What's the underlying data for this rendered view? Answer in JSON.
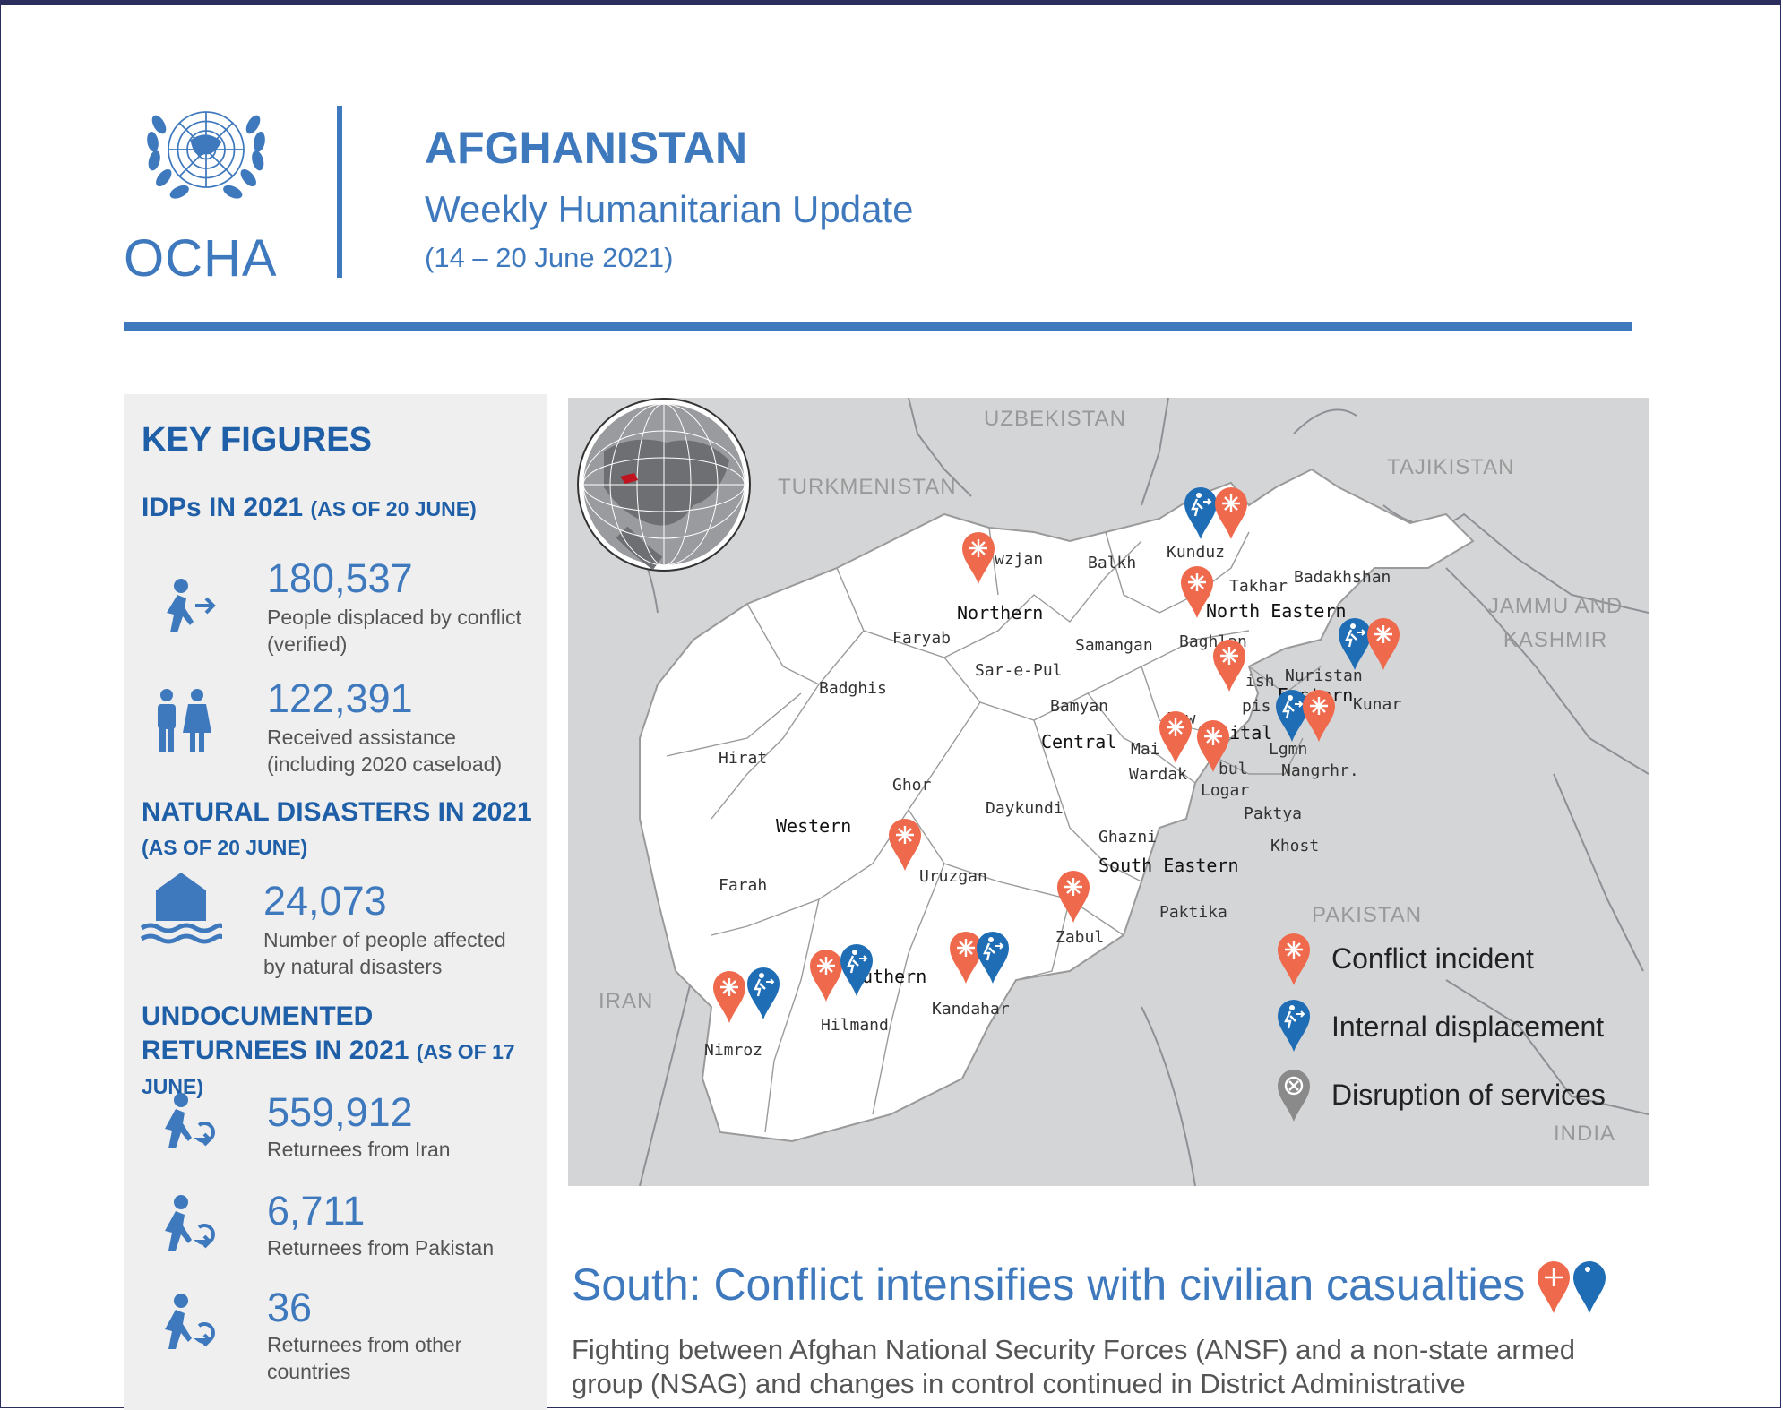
{
  "header": {
    "org": "OCHA",
    "title": "AFGHANISTAN",
    "subtitle": "Weekly Humanitarian Update",
    "date_range": "(14 – 20 June 2021)"
  },
  "key_figures": {
    "heading": "KEY FIGURES",
    "idps": {
      "label": "IDPs IN 2021",
      "as_of": "(AS OF 20 JUNE)",
      "items": [
        {
          "value": "180,537",
          "desc": "People displaced by conflict (verified)",
          "icon": "displaced-person-icon"
        },
        {
          "value": "122,391",
          "desc": "Received assistance (including 2020 caseload)",
          "icon": "people-icon"
        }
      ]
    },
    "disasters": {
      "label": "NATURAL DISASTERS IN 2021",
      "as_of": "(AS OF 20 JUNE)",
      "items": [
        {
          "value": "24,073",
          "desc": "Number of people affected by natural disasters",
          "icon": "flood-house-icon"
        }
      ]
    },
    "returnees": {
      "label": "UNDOCUMENTED RETURNEES IN 2021",
      "as_of": "(AS OF 17 JUNE)",
      "items": [
        {
          "value": "559,912",
          "desc": "Returnees from Iran",
          "icon": "returnee-icon"
        },
        {
          "value": "6,711",
          "desc": "Returnees from Pakistan",
          "icon": "returnee-icon"
        },
        {
          "value": "36",
          "desc": "Returnees from other countries",
          "icon": "returnee-icon"
        }
      ]
    }
  },
  "map": {
    "countries": [
      "UZBEKISTAN",
      "TURKMENISTAN",
      "TAJIKISTAN",
      "JAMMU AND KASHMIR",
      "IRAN",
      "PAKISTAN",
      "INDIA"
    ],
    "regions": [
      "Northern",
      "North Eastern",
      "Eastern",
      "Capital",
      "Central",
      "Western",
      "South Eastern",
      "uthern"
    ],
    "provinces": [
      "wzjan",
      "Balkh",
      "Kunduz",
      "Takhar",
      "Badakhshan",
      "Faryab",
      "Samangan",
      "Baghlan",
      "Sar-e-Pul",
      "Badghis",
      "Bamyan",
      "Nuristan",
      "Kunar",
      "Hirat",
      "Ghor",
      "Daykundi",
      "Mai",
      "Wardak",
      "Logar",
      "Nangrhr.",
      "Paktya",
      "Khost",
      "Ghazni",
      "Farah",
      "Uruzgan",
      "Zabul",
      "Paktika",
      "Nimroz",
      "Hilmand",
      "Kandahar",
      "Prw",
      "ish",
      "pis",
      "Lgmn",
      "bul"
    ],
    "legend": [
      {
        "label": "Conflict incident",
        "color": "#ef6a4d"
      },
      {
        "label": "Internal displacement",
        "color": "#1f6db5"
      },
      {
        "label": "Disruption of services",
        "color": "#8a8a8a"
      }
    ]
  },
  "article": {
    "heading": "South: Conflict intensifies with civilian casualties",
    "body": "Fighting between Afghan National Security Forces (ANSF) and a non-state armed group (NSAG) and changes in control continued in District Administrative"
  }
}
